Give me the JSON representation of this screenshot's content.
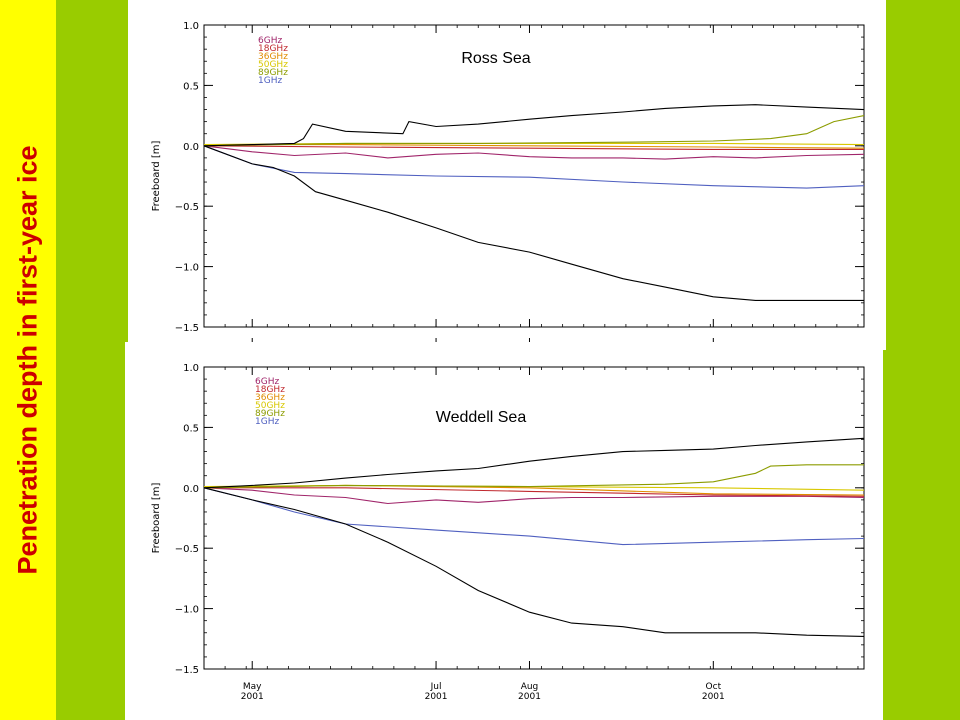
{
  "page": {
    "side_title": "Penetration depth in first-year ice",
    "colors": {
      "background": "#99cc00",
      "left_band": "#ffff00",
      "title": "#cc0000"
    }
  },
  "chart_data": [
    {
      "type": "line",
      "title": "Ross Sea",
      "xlabel": "",
      "ylabel": "Freeboard [m]",
      "xlim": [
        "2001-04-15",
        "2001-11-20"
      ],
      "ylim": [
        -1.5,
        1.0
      ],
      "yticks": [
        "1.0",
        "0.5",
        "0.0",
        "−0.5",
        "−1.0",
        "−1.5"
      ],
      "xticks": [],
      "legend": {
        "placement": "top-left"
      },
      "series": [
        {
          "name": "6GHz",
          "color": "#a0256a",
          "x": [
            "2001-04-15",
            "2001-05-01",
            "2001-05-15",
            "2001-06-01",
            "2001-06-15",
            "2001-07-01",
            "2001-07-15",
            "2001-08-01",
            "2001-08-15",
            "2001-09-01",
            "2001-09-15",
            "2001-10-01",
            "2001-10-15",
            "2001-11-01",
            "2001-11-20"
          ],
          "values": [
            0.0,
            -0.05,
            -0.08,
            -0.06,
            -0.1,
            -0.07,
            -0.06,
            -0.09,
            -0.1,
            -0.1,
            -0.11,
            -0.09,
            -0.1,
            -0.08,
            -0.07
          ]
        },
        {
          "name": "18GHz",
          "color": "#c0282e",
          "x": [
            "2001-04-15",
            "2001-06-01",
            "2001-08-01",
            "2001-10-01",
            "2001-11-20"
          ],
          "values": [
            0.0,
            -0.01,
            -0.02,
            -0.03,
            -0.03
          ]
        },
        {
          "name": "36GHz",
          "color": "#e08c00",
          "x": [
            "2001-04-15",
            "2001-06-01",
            "2001-08-01",
            "2001-10-01",
            "2001-11-20"
          ],
          "values": [
            0.01,
            0.01,
            0.0,
            -0.01,
            -0.02
          ]
        },
        {
          "name": "50GHz",
          "color": "#d8c800",
          "x": [
            "2001-04-15",
            "2001-06-01",
            "2001-08-01",
            "2001-10-01",
            "2001-11-20"
          ],
          "values": [
            0.01,
            0.02,
            0.02,
            0.02,
            0.01
          ]
        },
        {
          "name": "89GHz",
          "color": "#8c9c00",
          "x": [
            "2001-04-15",
            "2001-06-01",
            "2001-07-15",
            "2001-09-01",
            "2001-10-01",
            "2001-10-20",
            "2001-11-01",
            "2001-11-10",
            "2001-11-20"
          ],
          "values": [
            0.0,
            0.02,
            0.02,
            0.03,
            0.04,
            0.06,
            0.1,
            0.2,
            0.25
          ]
        },
        {
          "name": "1GHz",
          "color": "#5060c0",
          "x": [
            "2001-04-15",
            "2001-05-01",
            "2001-05-15",
            "2001-06-01",
            "2001-07-01",
            "2001-08-01",
            "2001-09-01",
            "2001-10-01",
            "2001-11-01",
            "2001-11-20"
          ],
          "values": [
            0.0,
            -0.15,
            -0.22,
            -0.23,
            -0.25,
            -0.26,
            -0.3,
            -0.33,
            -0.35,
            -0.33
          ]
        },
        {
          "name": "",
          "color": "#000000",
          "x": [
            "2001-04-15",
            "2001-05-01",
            "2001-05-08",
            "2001-05-15",
            "2001-05-22",
            "2001-06-01",
            "2001-06-15",
            "2001-07-01",
            "2001-07-15",
            "2001-08-01",
            "2001-08-15",
            "2001-09-01",
            "2001-09-15",
            "2001-10-01",
            "2001-10-15",
            "2001-11-01",
            "2001-11-20"
          ],
          "values": [
            0.0,
            -0.15,
            -0.18,
            -0.25,
            -0.38,
            -0.45,
            -0.55,
            -0.68,
            -0.8,
            -0.88,
            -0.98,
            -1.1,
            -1.17,
            -1.25,
            -1.28,
            -1.28,
            -1.28
          ]
        },
        {
          "name": "",
          "color": "#000000",
          "x": [
            "2001-04-15",
            "2001-05-01",
            "2001-05-15",
            "2001-05-18",
            "2001-05-21",
            "2001-06-01",
            "2001-06-20",
            "2001-06-22",
            "2001-07-01",
            "2001-07-15",
            "2001-08-01",
            "2001-08-15",
            "2001-09-01",
            "2001-09-15",
            "2001-10-01",
            "2001-10-15",
            "2001-11-01",
            "2001-11-20"
          ],
          "values": [
            0.0,
            0.01,
            0.02,
            0.06,
            0.18,
            0.12,
            0.1,
            0.2,
            0.16,
            0.18,
            0.22,
            0.25,
            0.28,
            0.31,
            0.33,
            0.34,
            0.32,
            0.3
          ]
        }
      ]
    },
    {
      "type": "line",
      "title": "Weddell Sea",
      "xlabel": "",
      "ylabel": "Freeboard [m]",
      "xlim": [
        "2001-04-15",
        "2001-11-20"
      ],
      "ylim": [
        -1.5,
        1.0
      ],
      "yticks": [
        "1.0",
        "0.5",
        "0.0",
        "−0.5",
        "−1.0",
        "−1.5"
      ],
      "xticks": [
        {
          "month": "May",
          "year": "2001",
          "date": "2001-05-01"
        },
        {
          "month": "Jul",
          "year": "2001",
          "date": "2001-07-01"
        },
        {
          "month": "Aug",
          "year": "2001",
          "date": "2001-08-01"
        },
        {
          "month": "Oct",
          "year": "2001",
          "date": "2001-10-01"
        }
      ],
      "legend": {
        "placement": "top-left"
      },
      "series": [
        {
          "name": "6GHz",
          "color": "#a0256a",
          "x": [
            "2001-04-15",
            "2001-05-01",
            "2001-05-15",
            "2001-06-01",
            "2001-06-15",
            "2001-07-01",
            "2001-07-15",
            "2001-08-01",
            "2001-08-15",
            "2001-09-01",
            "2001-10-01",
            "2001-11-01",
            "2001-11-20"
          ],
          "values": [
            0.0,
            -0.02,
            -0.06,
            -0.08,
            -0.13,
            -0.1,
            -0.12,
            -0.09,
            -0.08,
            -0.08,
            -0.07,
            -0.07,
            -0.08
          ]
        },
        {
          "name": "18GHz",
          "color": "#c0282e",
          "x": [
            "2001-04-15",
            "2001-06-01",
            "2001-08-01",
            "2001-10-01",
            "2001-11-20"
          ],
          "values": [
            0.0,
            0.0,
            -0.03,
            -0.06,
            -0.07
          ]
        },
        {
          "name": "36GHz",
          "color": "#e08c00",
          "x": [
            "2001-04-15",
            "2001-06-01",
            "2001-08-01",
            "2001-10-01",
            "2001-11-20"
          ],
          "values": [
            0.0,
            0.02,
            0.0,
            -0.05,
            -0.06
          ]
        },
        {
          "name": "50GHz",
          "color": "#d8c800",
          "x": [
            "2001-04-15",
            "2001-06-01",
            "2001-08-01",
            "2001-10-01",
            "2001-11-20"
          ],
          "values": [
            0.01,
            0.02,
            0.01,
            0.0,
            -0.02
          ]
        },
        {
          "name": "89GHz",
          "color": "#8c9c00",
          "x": [
            "2001-04-15",
            "2001-06-01",
            "2001-08-01",
            "2001-09-15",
            "2001-10-01",
            "2001-10-15",
            "2001-10-20",
            "2001-11-01",
            "2001-11-20"
          ],
          "values": [
            0.0,
            0.02,
            0.01,
            0.03,
            0.05,
            0.12,
            0.18,
            0.19,
            0.19
          ]
        },
        {
          "name": "1GHz",
          "color": "#5060c0",
          "x": [
            "2001-04-15",
            "2001-05-01",
            "2001-05-15",
            "2001-06-01",
            "2001-07-01",
            "2001-08-01",
            "2001-09-01",
            "2001-10-01",
            "2001-11-01",
            "2001-11-20"
          ],
          "values": [
            0.0,
            -0.1,
            -0.2,
            -0.3,
            -0.35,
            -0.4,
            -0.47,
            -0.45,
            -0.43,
            -0.42
          ]
        },
        {
          "name": "",
          "color": "#000000",
          "x": [
            "2001-04-15",
            "2001-05-01",
            "2001-05-15",
            "2001-06-01",
            "2001-06-15",
            "2001-07-01",
            "2001-07-15",
            "2001-08-01",
            "2001-08-15",
            "2001-09-01",
            "2001-09-15",
            "2001-10-01",
            "2001-10-15",
            "2001-11-01",
            "2001-11-20"
          ],
          "values": [
            0.0,
            -0.1,
            -0.18,
            -0.3,
            -0.45,
            -0.65,
            -0.85,
            -1.03,
            -1.12,
            -1.15,
            -1.2,
            -1.2,
            -1.2,
            -1.22,
            -1.23
          ]
        },
        {
          "name": "",
          "color": "#000000",
          "x": [
            "2001-04-15",
            "2001-05-01",
            "2001-05-15",
            "2001-06-01",
            "2001-06-15",
            "2001-07-01",
            "2001-07-15",
            "2001-08-01",
            "2001-08-15",
            "2001-09-01",
            "2001-09-15",
            "2001-10-01",
            "2001-10-15",
            "2001-11-01",
            "2001-11-20"
          ],
          "values": [
            0.0,
            0.02,
            0.04,
            0.08,
            0.11,
            0.14,
            0.16,
            0.22,
            0.26,
            0.3,
            0.31,
            0.32,
            0.35,
            0.38,
            0.41
          ]
        }
      ]
    }
  ]
}
